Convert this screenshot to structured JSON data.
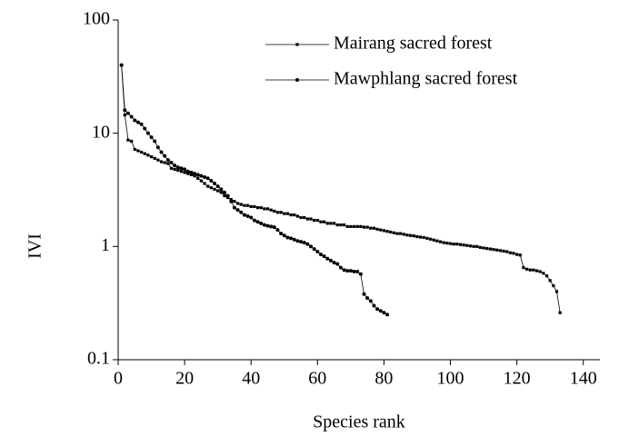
{
  "chart_data": {
    "type": "line",
    "x_label": "Species rank",
    "y_label": "IVI",
    "log_y": true,
    "legend": "upper right",
    "xlim": [
      0,
      145
    ],
    "xticks": [
      0,
      20,
      40,
      60,
      80,
      100,
      120,
      140
    ],
    "ylim": [
      0.1,
      100
    ],
    "yticks": [
      0.1,
      1,
      10,
      100
    ],
    "series": [
      {
        "name": "Mairang sacred forest",
        "color": "#000000",
        "marker": "square",
        "x": [
          1,
          2,
          3,
          4,
          5,
          6,
          7,
          8,
          9,
          10,
          11,
          12,
          13,
          14,
          15,
          16,
          17,
          18,
          19,
          20,
          21,
          22,
          23,
          24,
          25,
          26,
          27,
          28,
          29,
          30,
          31,
          32,
          33,
          34,
          35,
          36,
          37,
          38,
          39,
          40,
          41,
          42,
          43,
          44,
          45,
          46,
          47,
          48,
          49,
          50,
          51,
          52,
          53,
          54,
          55,
          56,
          57,
          58,
          59,
          60,
          61,
          62,
          63,
          64,
          65,
          66,
          67,
          68,
          69,
          70,
          71,
          72,
          73,
          74,
          75,
          76,
          77,
          78,
          79,
          80,
          81,
          82,
          83,
          84,
          85,
          86,
          87,
          88,
          89,
          90,
          91,
          92,
          93,
          94,
          95,
          96,
          97,
          98,
          99,
          100,
          101,
          102,
          103,
          104,
          105,
          106,
          107,
          108,
          109,
          110,
          111,
          112,
          113,
          114,
          115,
          116,
          117,
          118,
          119,
          120,
          121,
          122,
          123,
          124,
          125,
          126,
          127,
          128,
          129,
          130,
          131,
          132,
          133
        ],
        "values": [
          40,
          14.5,
          8.7,
          8.5,
          7.2,
          7.0,
          6.8,
          6.6,
          6.4,
          6.2,
          6.0,
          5.8,
          5.6,
          5.5,
          5.4,
          4.9,
          4.8,
          4.7,
          4.6,
          4.5,
          4.4,
          4.3,
          4.2,
          4.0,
          3.8,
          3.6,
          3.4,
          3.3,
          3.2,
          3.1,
          3.0,
          2.8,
          2.7,
          2.6,
          2.5,
          2.4,
          2.35,
          2.3,
          2.3,
          2.25,
          2.25,
          2.2,
          2.2,
          2.15,
          2.15,
          2.1,
          2.05,
          2.0,
          2.0,
          1.95,
          1.95,
          1.9,
          1.9,
          1.85,
          1.8,
          1.8,
          1.75,
          1.75,
          1.7,
          1.7,
          1.65,
          1.65,
          1.6,
          1.6,
          1.6,
          1.55,
          1.55,
          1.55,
          1.5,
          1.5,
          1.5,
          1.5,
          1.5,
          1.48,
          1.48,
          1.45,
          1.45,
          1.42,
          1.4,
          1.38,
          1.36,
          1.34,
          1.32,
          1.3,
          1.3,
          1.28,
          1.26,
          1.25,
          1.24,
          1.22,
          1.21,
          1.2,
          1.18,
          1.16,
          1.14,
          1.12,
          1.1,
          1.08,
          1.07,
          1.06,
          1.05,
          1.05,
          1.04,
          1.03,
          1.02,
          1.01,
          1.0,
          1.0,
          0.98,
          0.97,
          0.96,
          0.95,
          0.94,
          0.93,
          0.92,
          0.91,
          0.9,
          0.88,
          0.87,
          0.85,
          0.84,
          0.65,
          0.63,
          0.62,
          0.62,
          0.61,
          0.6,
          0.58,
          0.55,
          0.5,
          0.45,
          0.4,
          0.26
        ]
      },
      {
        "name": "Mawphlang sacred forest",
        "color": "#000000",
        "marker": "circle",
        "x": [
          1,
          2,
          3,
          4,
          5,
          6,
          7,
          8,
          9,
          10,
          11,
          12,
          13,
          14,
          15,
          16,
          17,
          18,
          19,
          20,
          21,
          22,
          23,
          24,
          25,
          26,
          27,
          28,
          29,
          30,
          31,
          32,
          33,
          34,
          35,
          36,
          37,
          38,
          39,
          40,
          41,
          42,
          43,
          44,
          45,
          46,
          47,
          48,
          49,
          50,
          51,
          52,
          53,
          54,
          55,
          56,
          57,
          58,
          59,
          60,
          61,
          62,
          63,
          64,
          65,
          66,
          67,
          68,
          69,
          70,
          71,
          72,
          73,
          74,
          75,
          76,
          77,
          78,
          79,
          80,
          81
        ],
        "values": [
          40,
          16,
          15,
          14,
          13,
          12.5,
          12,
          11,
          10,
          9.2,
          8.5,
          7.5,
          6.8,
          6.3,
          5.8,
          5.5,
          5.2,
          5.0,
          4.9,
          4.8,
          4.6,
          4.5,
          4.4,
          4.3,
          4.2,
          4.1,
          4.0,
          3.8,
          3.6,
          3.4,
          3.2,
          3.0,
          2.8,
          2.5,
          2.2,
          2.1,
          2.0,
          1.9,
          1.85,
          1.8,
          1.7,
          1.65,
          1.6,
          1.55,
          1.52,
          1.5,
          1.48,
          1.4,
          1.3,
          1.25,
          1.2,
          1.18,
          1.15,
          1.12,
          1.1,
          1.08,
          1.05,
          1.0,
          0.95,
          0.9,
          0.85,
          0.82,
          0.78,
          0.75,
          0.72,
          0.7,
          0.65,
          0.62,
          0.61,
          0.61,
          0.6,
          0.6,
          0.57,
          0.38,
          0.35,
          0.33,
          0.3,
          0.28,
          0.27,
          0.26,
          0.25
        ]
      }
    ]
  }
}
